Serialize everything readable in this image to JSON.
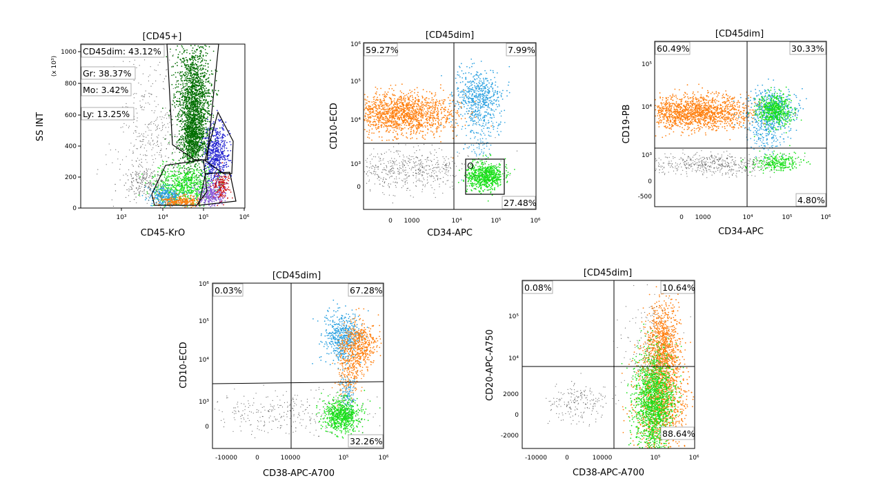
{
  "colors": {
    "granulocytes": "#006e00",
    "blasts_cd45dim": "#19e019",
    "monocytes": "#2020d0",
    "lymph_red": "#d01818",
    "lymph_purple": "#8a5cd8",
    "b_orange": "#ff7f0e",
    "b_blue": "#2aa0e0",
    "debris_grey": "#666666"
  },
  "chart_data": [
    {
      "type": "scatter",
      "title": "[CD45+]",
      "xlabel": "CD45-KrO",
      "ylabel": "SS INT",
      "y_multiplier": "(x 10³)",
      "x_ticks": [
        "10³",
        "10⁴",
        "10⁵",
        "10⁶"
      ],
      "y_ticks": [
        "0",
        "200",
        "400",
        "600",
        "800",
        "1000"
      ],
      "gates": [
        {
          "label": "CD45dim",
          "percent": "43.12%"
        },
        {
          "label": "Gr",
          "percent": "38.37%"
        },
        {
          "label": "Mo",
          "percent": "3.42%"
        },
        {
          "label": "Ly",
          "percent": "13.25%"
        }
      ],
      "populations": [
        {
          "name": "Granulocytes",
          "color": "granulocytes",
          "x_log": 4.75,
          "y": 750,
          "n": 2600
        },
        {
          "name": "CD45dim",
          "color": "blasts_cd45dim",
          "x_log": 4.4,
          "y": 140,
          "n": 900
        },
        {
          "name": "Monocytes",
          "color": "monocytes",
          "x_log": 5.25,
          "y": 330,
          "n": 700
        },
        {
          "name": "Lymphocytes",
          "color": "lymph_purple",
          "x_log": 5.15,
          "y": 90,
          "n": 500
        },
        {
          "name": "Lymph-red",
          "color": "lymph_red",
          "x_log": 5.35,
          "y": 110,
          "n": 200
        },
        {
          "name": "Debris",
          "color": "debris_grey",
          "x_log": 3.9,
          "y": 300,
          "n": 500
        }
      ]
    },
    {
      "type": "scatter",
      "title": "[CD45dim]",
      "xlabel": "CD34-APC",
      "ylabel": "CD10-ECD",
      "x_ticks": [
        "0",
        "1000",
        "10⁴",
        "10⁵",
        "10⁶"
      ],
      "y_ticks": [
        "0",
        "10³",
        "10⁴",
        "10⁵",
        "10⁶"
      ],
      "quadrants": [
        "59.27%",
        "7.99%",
        "27.48%"
      ],
      "gate_label": "O"
    },
    {
      "type": "scatter",
      "title": "[CD45dim]",
      "xlabel": "CD34-APC",
      "ylabel": "CD19-PB",
      "x_ticks": [
        "0",
        "1000",
        "10⁴",
        "10⁵",
        "10⁶"
      ],
      "y_ticks": [
        "-500",
        "0",
        "10³",
        "10⁴",
        "10⁵"
      ],
      "quadrants": [
        "60.49%",
        "30.33%",
        "4.80%"
      ]
    },
    {
      "type": "scatter",
      "title": "[CD45dim]",
      "xlabel": "CD38-APC-A700",
      "ylabel": "CD10-ECD",
      "x_ticks": [
        "-10000",
        "0",
        "10000",
        "10⁵",
        "10⁶"
      ],
      "y_ticks": [
        "0",
        "10³",
        "10⁴",
        "10⁵",
        "10⁶"
      ],
      "quadrants": [
        "0.03%",
        "67.28%",
        "32.26%"
      ]
    },
    {
      "type": "scatter",
      "title": "[CD45dim]",
      "xlabel": "CD38-APC-A700",
      "ylabel": "CD20-APC-A750",
      "x_ticks": [
        "-10000",
        "0",
        "10000",
        "10⁵",
        "10⁶"
      ],
      "y_ticks": [
        "-2000",
        "0",
        "2000",
        "10⁴",
        "10⁵"
      ],
      "quadrants": [
        "0.08%",
        "10.64%",
        "88.64%"
      ]
    }
  ]
}
